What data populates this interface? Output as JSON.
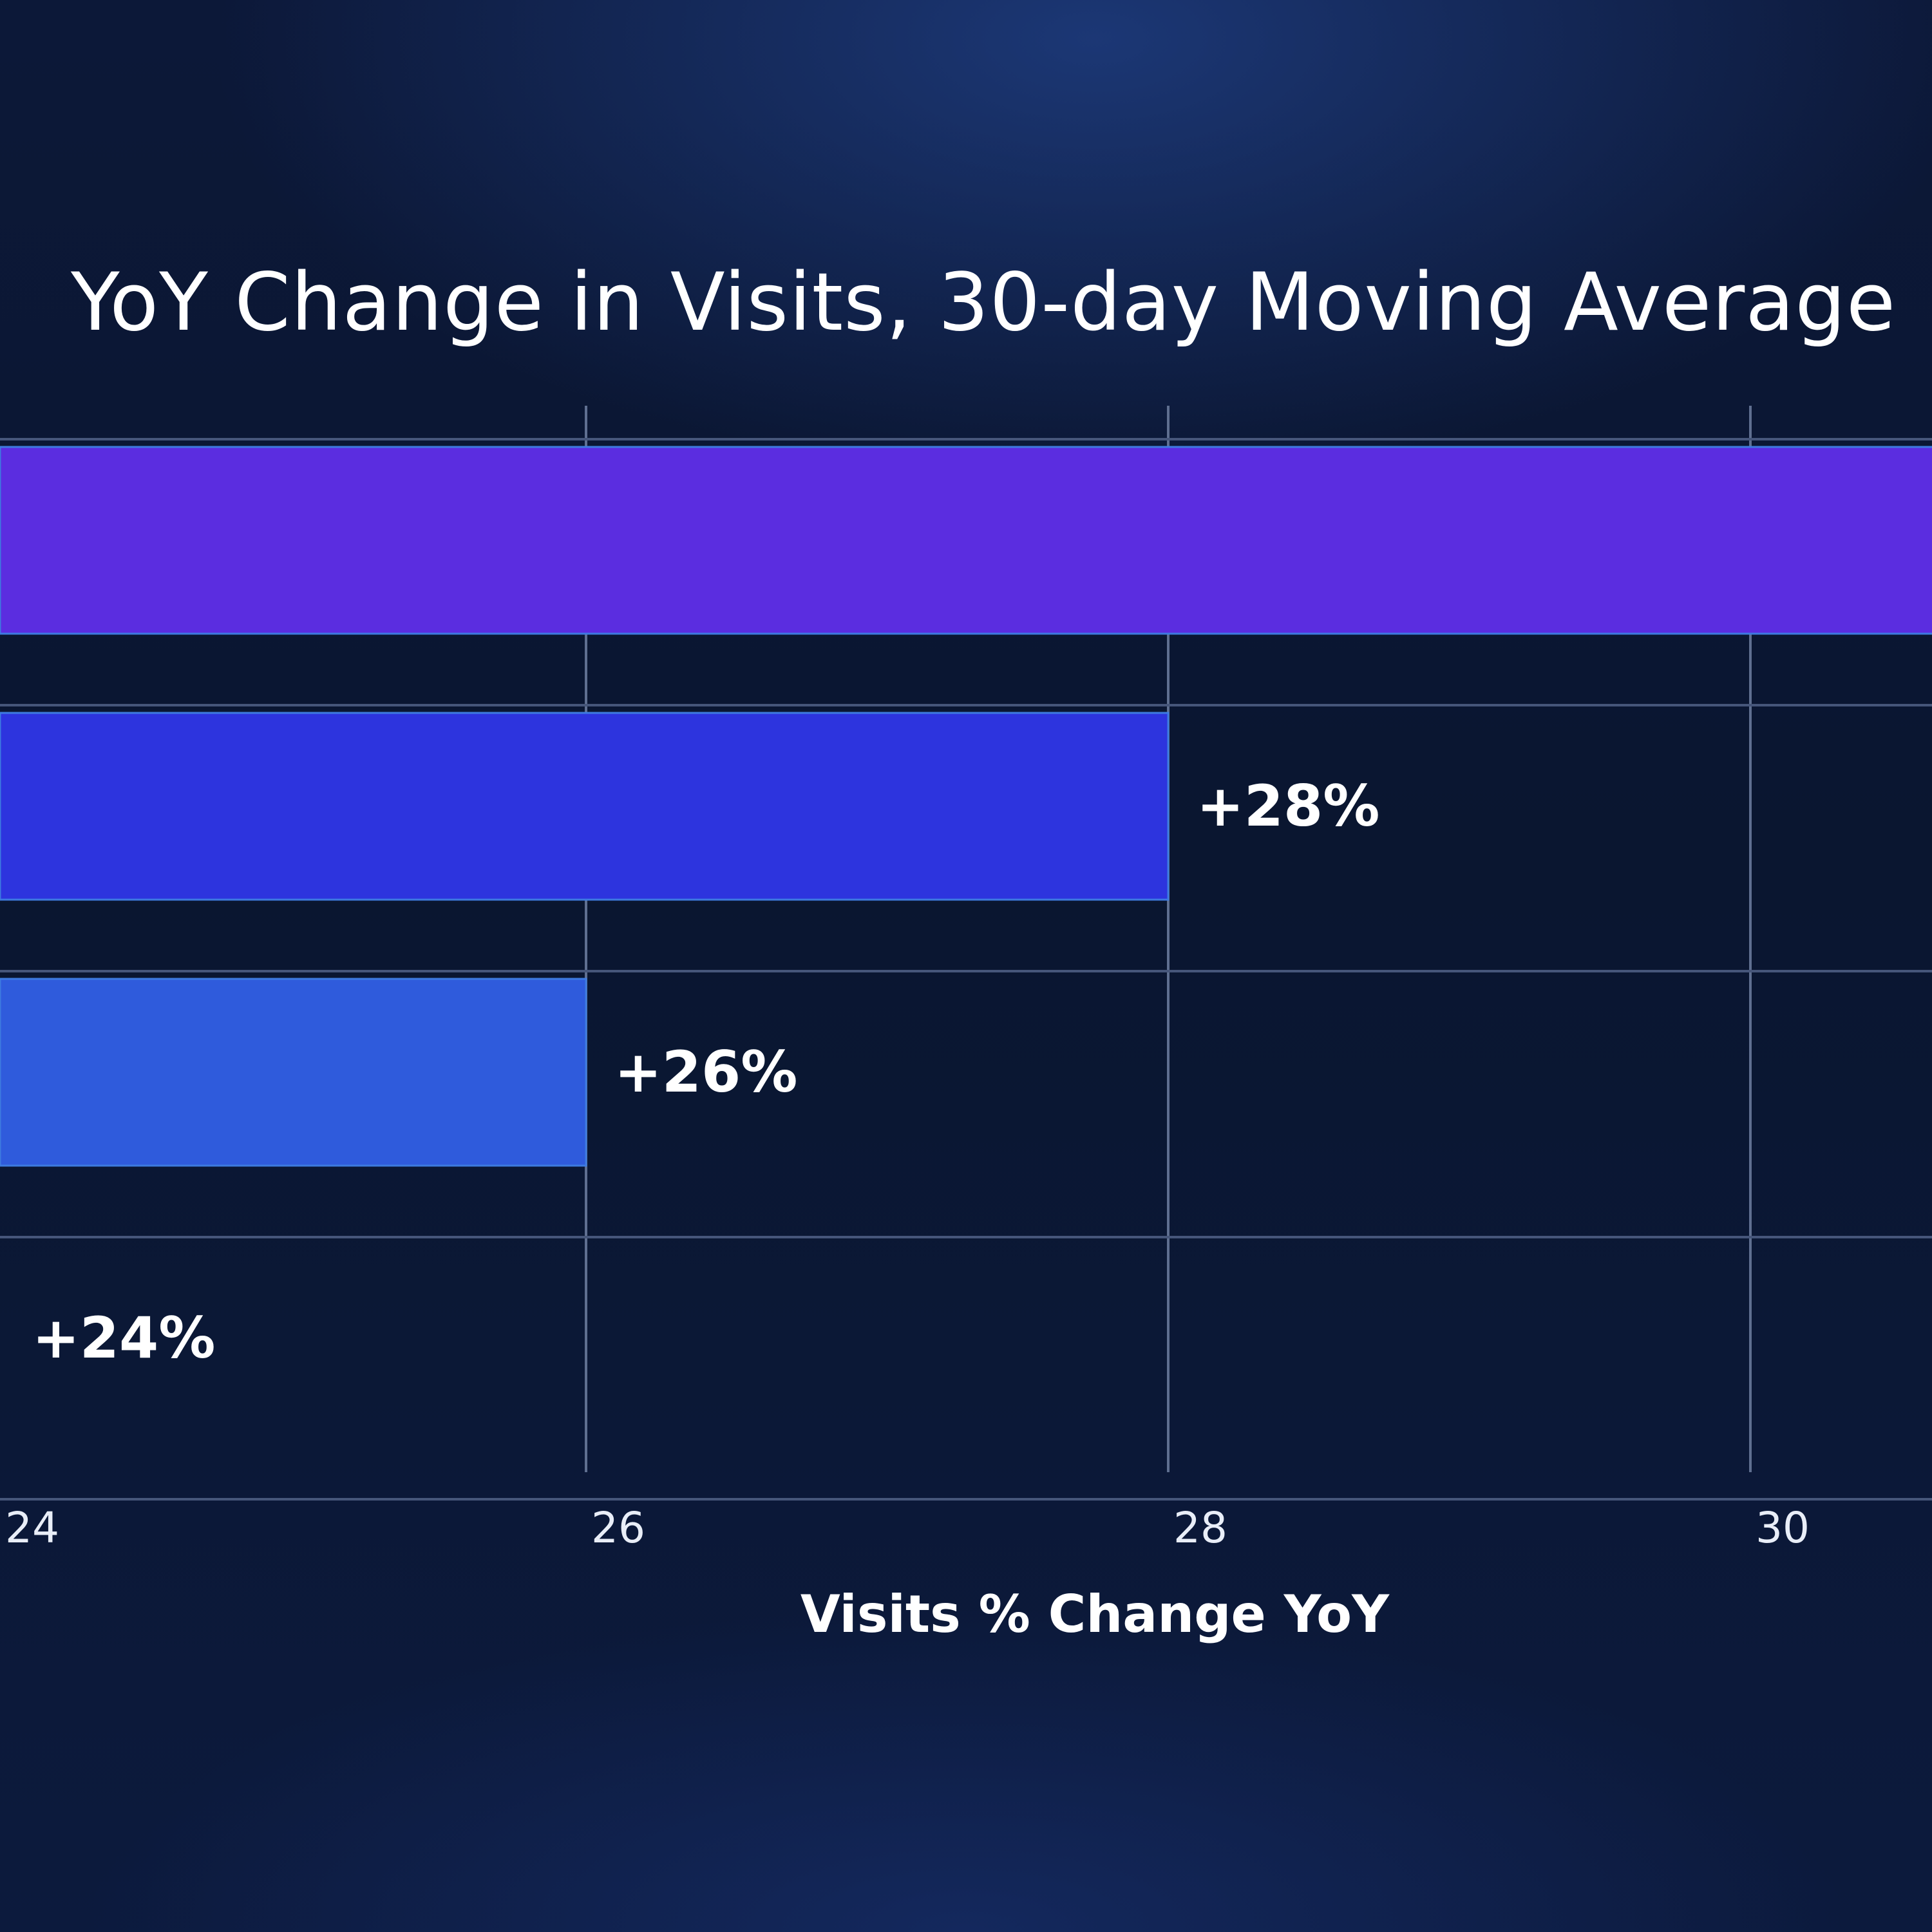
{
  "chart_data": {
    "type": "bar",
    "orientation": "horizontal",
    "title": "YoY Change in Visits, 30-day Moving Average",
    "xlabel": "Visits % Change YoY",
    "ylabel": "",
    "x_ticks": [
      "24",
      "26",
      "28",
      "30"
    ],
    "xlim": [
      24,
      32.6
    ],
    "grid": true,
    "values": [
      32.6,
      28,
      26,
      24
    ],
    "data_labels": [
      "",
      "+28%",
      "+26%",
      "+24%"
    ],
    "colors": [
      "#5b2de0",
      "#2d34de",
      "#2f5bdc",
      "#2f5bdc"
    ]
  }
}
